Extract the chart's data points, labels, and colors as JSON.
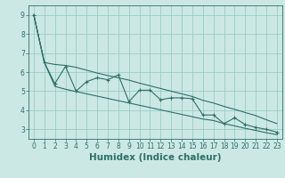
{
  "xlabel": "Humidex (Indice chaleur)",
  "bg_color": "#cce8e4",
  "grid_color": "#99ccc4",
  "line_color": "#2d7068",
  "x_data": [
    0,
    1,
    2,
    3,
    4,
    5,
    6,
    7,
    8,
    9,
    10,
    11,
    12,
    13,
    14,
    15,
    16,
    17,
    18,
    19,
    20,
    21,
    22,
    23
  ],
  "y_main": [
    9.0,
    6.5,
    5.4,
    6.3,
    5.0,
    5.5,
    5.7,
    5.6,
    5.85,
    4.45,
    5.05,
    5.05,
    4.55,
    4.65,
    4.65,
    4.6,
    3.75,
    3.75,
    3.3,
    3.6,
    3.25,
    3.1,
    3.0,
    2.85
  ],
  "y_upper": [
    9.0,
    6.5,
    6.4,
    6.35,
    6.25,
    6.1,
    5.95,
    5.82,
    5.7,
    5.58,
    5.42,
    5.28,
    5.14,
    5.0,
    4.86,
    4.72,
    4.52,
    4.38,
    4.2,
    4.05,
    3.88,
    3.72,
    3.5,
    3.3
  ],
  "y_lower": [
    9.0,
    6.5,
    5.25,
    5.1,
    4.98,
    4.86,
    4.74,
    4.62,
    4.5,
    4.38,
    4.26,
    4.14,
    4.02,
    3.9,
    3.78,
    3.66,
    3.54,
    3.46,
    3.3,
    3.18,
    3.05,
    2.94,
    2.82,
    2.72
  ],
  "xlim": [
    -0.5,
    23.5
  ],
  "ylim": [
    2.5,
    9.5
  ],
  "yticks": [
    3,
    4,
    5,
    6,
    7,
    8,
    9
  ],
  "xticks": [
    0,
    1,
    2,
    3,
    4,
    5,
    6,
    7,
    8,
    9,
    10,
    11,
    12,
    13,
    14,
    15,
    16,
    17,
    18,
    19,
    20,
    21,
    22,
    23
  ],
  "tick_fontsize": 5.5,
  "label_fontsize": 7.5
}
